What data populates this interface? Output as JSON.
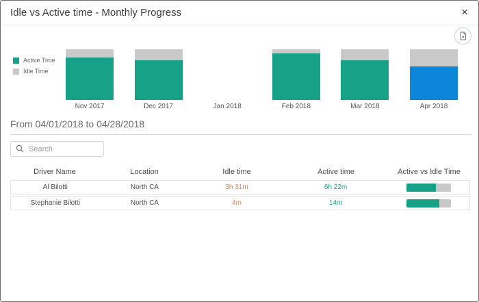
{
  "modal": {
    "title": "Idle vs Active time - Monthly Progress",
    "close_glyph": "×"
  },
  "chart_data": {
    "type": "bar",
    "stacked": true,
    "unit": "percent_of_total_time",
    "categories": [
      "Nov 2017",
      "Dec 2017",
      "Jan 2018",
      "Feb 2018",
      "Mar 2018",
      "Apr 2018"
    ],
    "series": [
      {
        "name": "Active Time",
        "color": "#17a287",
        "values": [
          84,
          79,
          0,
          92,
          79,
          66
        ]
      },
      {
        "name": "Idle Time",
        "color": "#c9c9c9",
        "values": [
          16,
          21,
          0,
          8,
          21,
          34
        ]
      }
    ],
    "selected_category": "Apr 2018",
    "selected_active_color": "#0b86d8",
    "legend_position": "left",
    "ylim": [
      0,
      100
    ],
    "axes_hidden": true,
    "grid": false
  },
  "period": {
    "label": "From 04/01/2018 to 04/28/2018"
  },
  "search": {
    "placeholder": "Search",
    "value": ""
  },
  "table": {
    "columns": [
      "Driver Name",
      "Location",
      "Idle time",
      "Active time",
      "Active vs Idle Time"
    ],
    "rows": [
      {
        "driver": "Al Bilotti",
        "location": "North CA",
        "idle": "3h 31m",
        "active": "6h 22m",
        "active_pct": 66
      },
      {
        "driver": "Stephanie Bilotti",
        "location": "North CA",
        "idle": "4m",
        "active": "14m",
        "active_pct": 75
      }
    ]
  },
  "colors": {
    "active": "#17a287",
    "idle": "#c9c9c9",
    "selected_month": "#0b86d8",
    "idle_text": "#e0814b",
    "active_text": "#17a287"
  }
}
